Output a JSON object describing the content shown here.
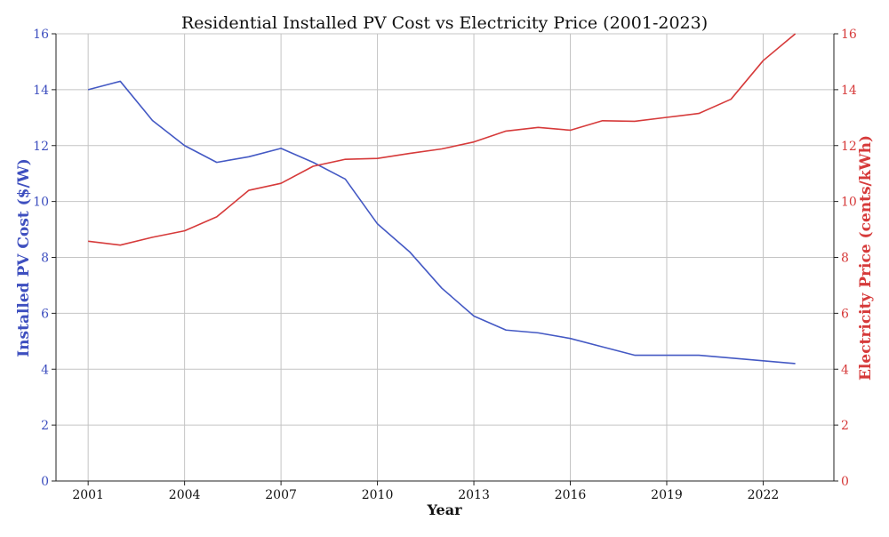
{
  "chart_data": {
    "type": "line",
    "title": "Residential Installed PV Cost vs Electricity Price (2001-2023)",
    "xlabel": "Year",
    "x": [
      2001,
      2002,
      2003,
      2004,
      2005,
      2006,
      2007,
      2008,
      2009,
      2010,
      2011,
      2012,
      2013,
      2014,
      2015,
      2016,
      2017,
      2018,
      2019,
      2020,
      2021,
      2022,
      2023
    ],
    "x_ticks": [
      2001,
      2004,
      2007,
      2010,
      2013,
      2016,
      2019,
      2022
    ],
    "xlim": [
      2000,
      2024.2
    ],
    "grid": true,
    "left_axis": {
      "label": "Installed PV Cost ($/W)",
      "ylim": [
        0,
        16
      ],
      "ticks": [
        0,
        2,
        4,
        6,
        8,
        10,
        12,
        14,
        16
      ],
      "color": "#3e4fbf"
    },
    "right_axis": {
      "label": "Electricity Price (cents/kWh)",
      "ylim": [
        0,
        16
      ],
      "ticks": [
        0,
        2,
        4,
        6,
        8,
        10,
        12,
        14,
        16
      ],
      "color": "#d63a3a"
    },
    "series": [
      {
        "axis": "left",
        "color": "#4459c4",
        "values": [
          14.0,
          14.3,
          12.9,
          12.0,
          11.4,
          11.6,
          11.9,
          11.4,
          10.8,
          9.2,
          8.2,
          6.9,
          5.9,
          5.4,
          5.3,
          5.1,
          4.8,
          4.5,
          4.5,
          4.5,
          4.4,
          4.3,
          4.2
        ]
      },
      {
        "axis": "right",
        "color": "#d63a3a",
        "values": [
          8.58,
          8.44,
          8.72,
          8.95,
          9.45,
          10.4,
          10.65,
          11.26,
          11.51,
          11.54,
          11.72,
          11.88,
          12.13,
          12.52,
          12.65,
          12.55,
          12.89,
          12.87,
          13.01,
          13.15,
          13.66,
          15.04,
          16.0
        ]
      }
    ]
  }
}
